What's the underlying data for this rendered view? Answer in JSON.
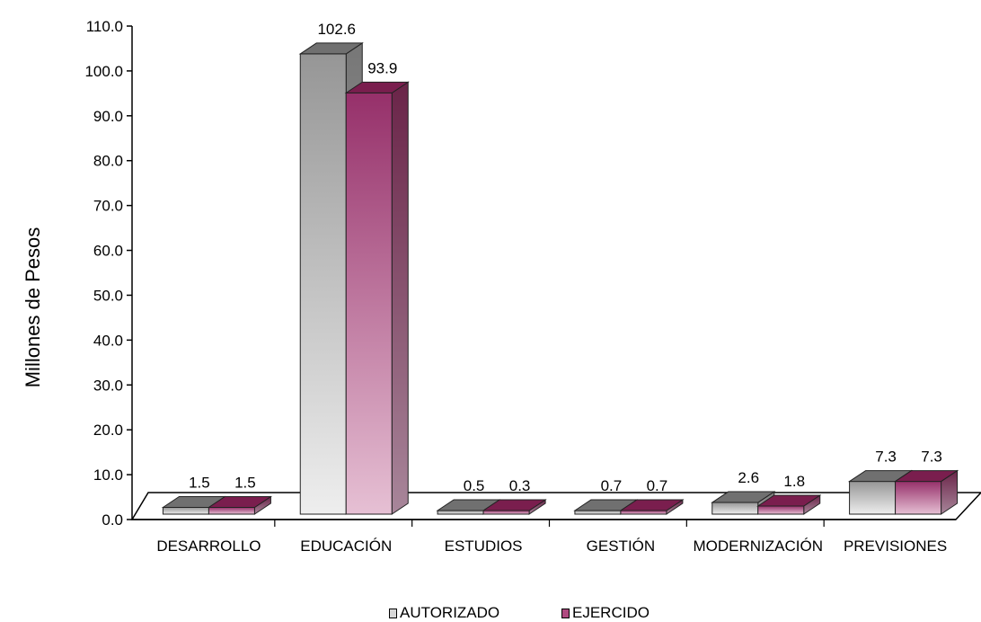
{
  "chart_data": {
    "type": "bar",
    "title": "",
    "xlabel": "",
    "ylabel": "Millones de Pesos",
    "ylim": [
      0,
      110
    ],
    "yticks": [
      "0.0",
      "10.0",
      "20.0",
      "30.0",
      "40.0",
      "50.0",
      "60.0",
      "70.0",
      "80.0",
      "90.0",
      "100.0",
      "110.0"
    ],
    "categories": [
      "DESARROLLO",
      "EDUCACIÓN",
      "ESTUDIOS",
      "GESTIÓN",
      "MODERNIZACIÓN",
      "PREVISIONES"
    ],
    "series": [
      {
        "name": "AUTORIZADO",
        "values": [
          1.5,
          102.6,
          0.5,
          0.7,
          2.6,
          7.3
        ],
        "labels": [
          "1.5",
          "102.6",
          "0.5",
          "0.7",
          "2.6",
          "7.3"
        ]
      },
      {
        "name": "EJERCIDO",
        "values": [
          1.5,
          93.9,
          0.3,
          0.7,
          1.8,
          7.3
        ],
        "labels": [
          "1.5",
          "93.9",
          "0.3",
          "0.7",
          "1.8",
          "7.3"
        ]
      }
    ],
    "grid": false,
    "legend_position": "bottom",
    "style": "3d-clustered-column",
    "colors": {
      "autorizado_front_top": "#969696",
      "autorizado_front_bottom": "#eeeeee",
      "autorizado_top": "#707070",
      "autorizado_side": "#8c8c8c",
      "ejercido_front_top": "#96306a",
      "ejercido_front_bottom": "#e6c0d4",
      "ejercido_top": "#7a1e4e",
      "ejercido_side": "#9a6a84"
    }
  },
  "legend": {
    "items": [
      {
        "label": "AUTORIZADO",
        "color": "#d8d8d8"
      },
      {
        "label": "EJERCIDO",
        "color": "#b04a80"
      }
    ]
  }
}
